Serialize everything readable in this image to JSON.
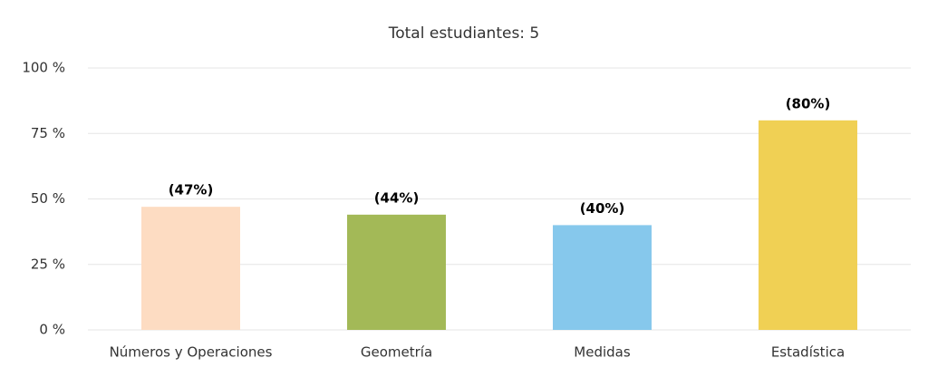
{
  "chart_data": {
    "type": "bar",
    "title": "Total estudiantes: 5",
    "categories": [
      "Números y Operaciones",
      "Geometría",
      "Medidas",
      "Estadística"
    ],
    "values": [
      47,
      44,
      40,
      80
    ],
    "value_labels": [
      "(47%)",
      "(44%)",
      "(40%)",
      "(80%)"
    ],
    "colors": [
      "#fddcc2",
      "#a3b957",
      "#86c8ec",
      "#f0d054"
    ],
    "ylim": [
      0,
      100
    ],
    "yticks": [
      {
        "value": 0,
        "label": "0 %"
      },
      {
        "value": 25,
        "label": "25 %"
      },
      {
        "value": 50,
        "label": "50 %"
      },
      {
        "value": 75,
        "label": "75 %"
      },
      {
        "value": 100,
        "label": "100 %"
      }
    ],
    "grid": true
  }
}
